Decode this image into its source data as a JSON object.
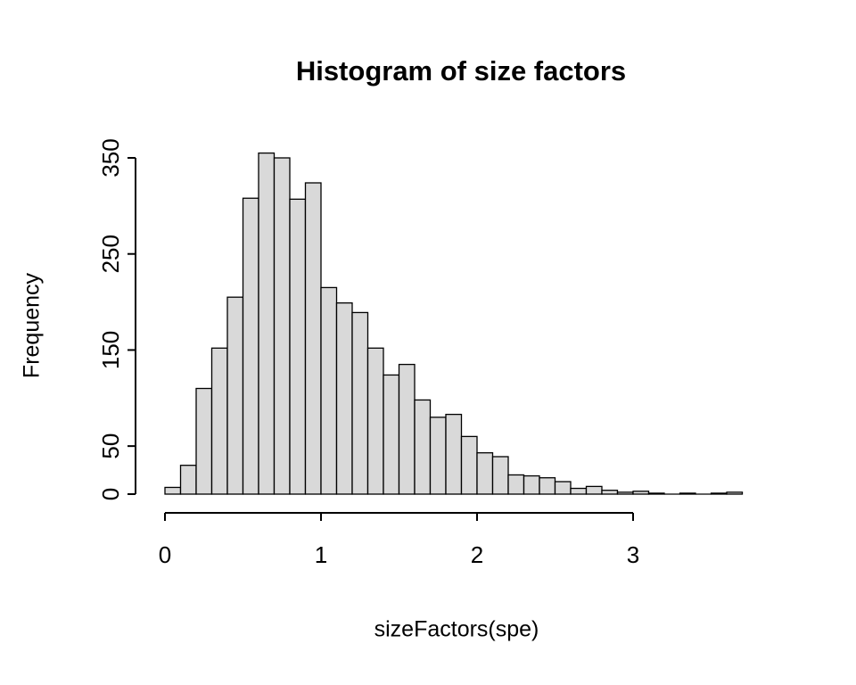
{
  "chart_data": {
    "type": "bar",
    "chart_kind": "histogram",
    "title": "Histogram of size factors",
    "xlabel": "sizeFactors(spe)",
    "ylabel": "Frequency",
    "bin_start": 0,
    "bin_width": 0.1,
    "values": [
      7,
      30,
      110,
      152,
      205,
      308,
      355,
      350,
      307,
      324,
      215,
      199,
      189,
      152,
      124,
      135,
      98,
      80,
      83,
      60,
      43,
      39,
      20,
      19,
      17,
      13,
      6,
      8,
      4,
      2,
      3,
      1,
      0,
      1,
      0,
      1,
      2
    ],
    "x_ticks": [
      0,
      1,
      2,
      3
    ],
    "y_ticks": [
      0,
      50,
      150,
      250,
      350
    ],
    "xlim": [
      0,
      3.7
    ],
    "ylim": [
      0,
      355
    ],
    "grid": false,
    "legend": false,
    "colors": {
      "bar_fill": "#d9d9d9",
      "bar_stroke": "#000000",
      "axis": "#000000",
      "text": "#000000",
      "background": "#ffffff"
    }
  }
}
